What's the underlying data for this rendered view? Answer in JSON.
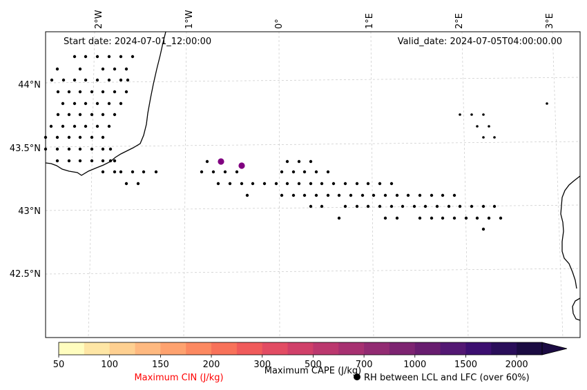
{
  "start_date_label": "Start date: 2024-07-01_12:00:00",
  "valid_date_label": "Valid_date: 2024-07-05T04:00:00.00",
  "lon_ticks": [
    "2°W",
    "1°W",
    "0°",
    "1°E",
    "2°E",
    "3°E"
  ],
  "lat_ticks": [
    "44°N",
    "43.5°N",
    "43°N",
    "42.5°N"
  ],
  "colorbar": {
    "ticks": [
      "50",
      "100",
      "150",
      "200",
      "300",
      "500",
      "700",
      "1000",
      "1500",
      "2000"
    ],
    "colors": [
      "#fffdbf",
      "#fee6a5",
      "#fed091",
      "#feb980",
      "#fea26f",
      "#fc8961",
      "#f8725a",
      "#f05b5b",
      "#e24c63",
      "#d04069",
      "#bb386e",
      "#a73171",
      "#922b72",
      "#7d2471",
      "#681d6f",
      "#531873",
      "#3c0f70",
      "#2a0e5a",
      "#1b0b42"
    ],
    "cin_label": "Maximum CIN (J/kg)",
    "cape_label": "Maximum CAPE (J/kg)",
    "cin_label_color": "#ff0000",
    "cape_label_color": "#000000"
  },
  "legend": {
    "rh_label": "RH between LCL and LFC (over 60%)"
  },
  "colors": {
    "coast": "#000000",
    "grid": "#c8c8c8",
    "cape_point": "#800080"
  }
}
